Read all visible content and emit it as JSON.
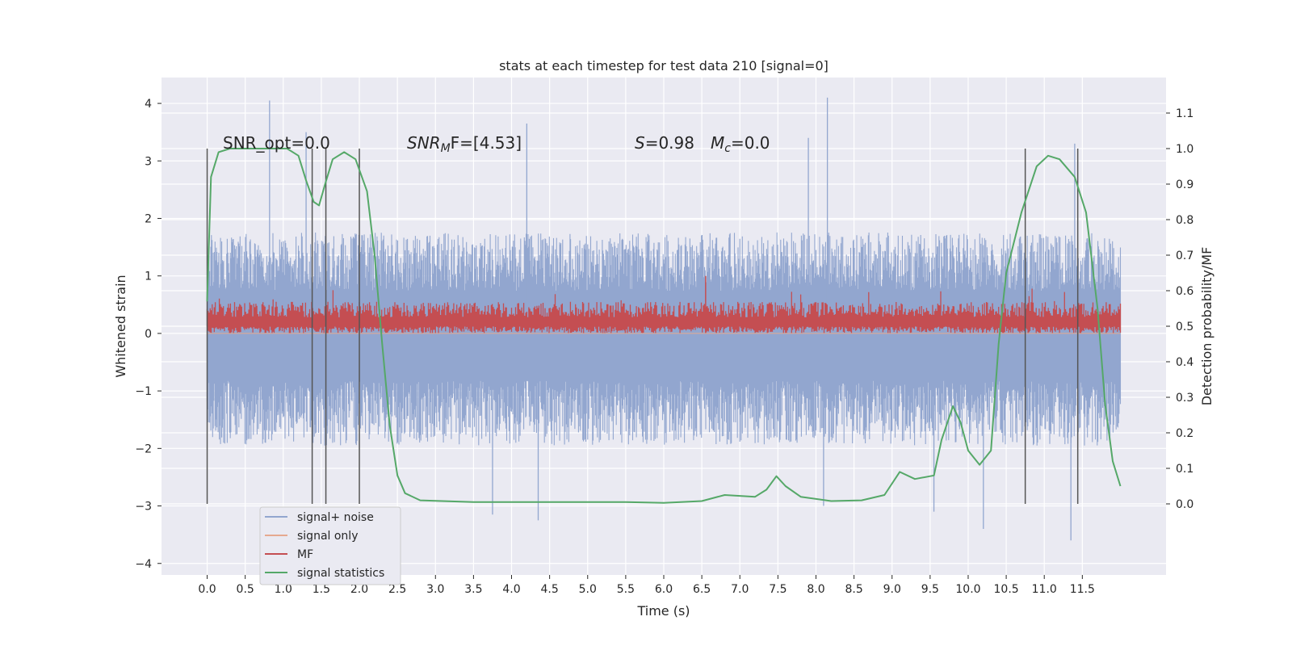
{
  "chart_data": {
    "type": "line",
    "title": "stats at each timestep for test data 210 [signal=0]",
    "xlabel": "Time (s)",
    "ylabel": "Whitened strain",
    "y2label": "Detection probability/MF",
    "xlim": [
      -0.6,
      12.6
    ],
    "ylim": [
      -4.2,
      4.45
    ],
    "y2lim": [
      -0.2,
      1.2
    ],
    "xticks": [
      0.0,
      0.5,
      1.0,
      1.5,
      2.0,
      2.5,
      3.0,
      3.5,
      4.0,
      4.5,
      5.0,
      5.5,
      6.0,
      6.5,
      7.0,
      7.5,
      8.0,
      8.5,
      9.0,
      9.5,
      10.0,
      10.5,
      11.0,
      11.5
    ],
    "xtick_labels": [
      "0.0",
      "0.5",
      "1.0",
      "1.5",
      "2.0",
      "2.5",
      "3.0",
      "3.5",
      "4.0",
      "4.5",
      "5.0",
      "5.5",
      "6.0",
      "6.5",
      "7.0",
      "7.5",
      "8.0",
      "8.5",
      "9.0",
      "9.5",
      "10.0",
      "10.5",
      "11.0",
      "11.5"
    ],
    "yticks": [
      4,
      3,
      2,
      1,
      0,
      -1,
      -2,
      -3,
      -4
    ],
    "ytick_labels": [
      "4",
      "3",
      "2",
      "1",
      "0",
      "−1",
      "−2",
      "−3",
      "−4"
    ],
    "y2ticks": [
      1.1,
      1.0,
      0.9,
      0.8,
      0.7,
      0.6,
      0.5,
      0.4,
      0.3,
      0.2,
      0.1,
      0.0
    ],
    "y2tick_labels": [
      "1.1",
      "1.0",
      "0.9",
      "0.8",
      "0.7",
      "0.6",
      "0.5",
      "0.4",
      "0.3",
      "0.2",
      "0.1",
      "0.0"
    ],
    "grid": true,
    "legend_position": "bottom-left",
    "annotations": {
      "snr_opt": "SNR_opt=0.0",
      "snr_mf": "SNR",
      "snr_mf_sub": "M",
      "snr_mf_rest": "F=[4.53]",
      "s_label": "S",
      "s_rest": "=0.98",
      "mc_label": "M",
      "mc_sub": "c",
      "mc_rest": "=0.0"
    },
    "vertical_lines_x": [
      0.0,
      1.38,
      1.56,
      2.0,
      10.75,
      11.44
    ],
    "vertical_lines_y2": [
      0.0,
      1.0
    ],
    "series": [
      {
        "name": "signal+ noise",
        "color": "#92a6cf",
        "style": "dense noise",
        "x_range": [
          0.0,
          12.0
        ],
        "envelope_typical": [
          -1.5,
          1.35
        ],
        "peaks": [
          {
            "x": 0.82,
            "y": 4.05
          },
          {
            "x": 8.15,
            "y": 4.1
          },
          {
            "x": 4.2,
            "y": 3.65
          },
          {
            "x": 1.3,
            "y": 3.5
          },
          {
            "x": 7.9,
            "y": 3.4
          },
          {
            "x": 11.4,
            "y": 3.3
          },
          {
            "x": 10.2,
            "y": -3.4
          },
          {
            "x": 11.35,
            "y": -3.6
          },
          {
            "x": 4.35,
            "y": -3.25
          },
          {
            "x": 3.75,
            "y": -3.15
          },
          {
            "x": 8.1,
            "y": -3.0
          },
          {
            "x": 9.55,
            "y": -3.1
          }
        ]
      },
      {
        "name": "signal only",
        "color": "#e5a98f",
        "values_note": "flat zero (no signal)",
        "y": 0
      },
      {
        "name": "MF",
        "color": "#c44e52",
        "x_range": [
          0.0,
          12.0
        ],
        "envelope_typical": [
          0.0,
          0.55
        ],
        "max": 1.0
      },
      {
        "name": "signal statistics",
        "color": "#55a868",
        "axis": "right",
        "points": [
          [
            0.0,
            0.57
          ],
          [
            0.05,
            0.92
          ],
          [
            0.15,
            0.99
          ],
          [
            0.3,
            1.0
          ],
          [
            1.05,
            1.0
          ],
          [
            1.2,
            0.98
          ],
          [
            1.3,
            0.91
          ],
          [
            1.4,
            0.85
          ],
          [
            1.47,
            0.84
          ],
          [
            1.55,
            0.9
          ],
          [
            1.65,
            0.97
          ],
          [
            1.8,
            0.99
          ],
          [
            1.95,
            0.97
          ],
          [
            2.1,
            0.88
          ],
          [
            2.2,
            0.7
          ],
          [
            2.3,
            0.45
          ],
          [
            2.4,
            0.22
          ],
          [
            2.5,
            0.08
          ],
          [
            2.6,
            0.03
          ],
          [
            2.8,
            0.01
          ],
          [
            3.5,
            0.005
          ],
          [
            4.5,
            0.005
          ],
          [
            5.5,
            0.005
          ],
          [
            6.0,
            0.003
          ],
          [
            6.5,
            0.008
          ],
          [
            6.8,
            0.025
          ],
          [
            7.2,
            0.02
          ],
          [
            7.35,
            0.04
          ],
          [
            7.48,
            0.078
          ],
          [
            7.6,
            0.05
          ],
          [
            7.8,
            0.02
          ],
          [
            8.2,
            0.008
          ],
          [
            8.6,
            0.01
          ],
          [
            8.9,
            0.025
          ],
          [
            9.1,
            0.09
          ],
          [
            9.3,
            0.07
          ],
          [
            9.55,
            0.08
          ],
          [
            9.65,
            0.18
          ],
          [
            9.8,
            0.275
          ],
          [
            9.9,
            0.23
          ],
          [
            10.0,
            0.15
          ],
          [
            10.15,
            0.11
          ],
          [
            10.3,
            0.15
          ],
          [
            10.4,
            0.45
          ],
          [
            10.5,
            0.65
          ],
          [
            10.7,
            0.82
          ],
          [
            10.9,
            0.95
          ],
          [
            11.05,
            0.98
          ],
          [
            11.2,
            0.97
          ],
          [
            11.4,
            0.92
          ],
          [
            11.55,
            0.82
          ],
          [
            11.7,
            0.55
          ],
          [
            11.8,
            0.28
          ],
          [
            11.9,
            0.12
          ],
          [
            12.0,
            0.05
          ]
        ]
      }
    ]
  }
}
